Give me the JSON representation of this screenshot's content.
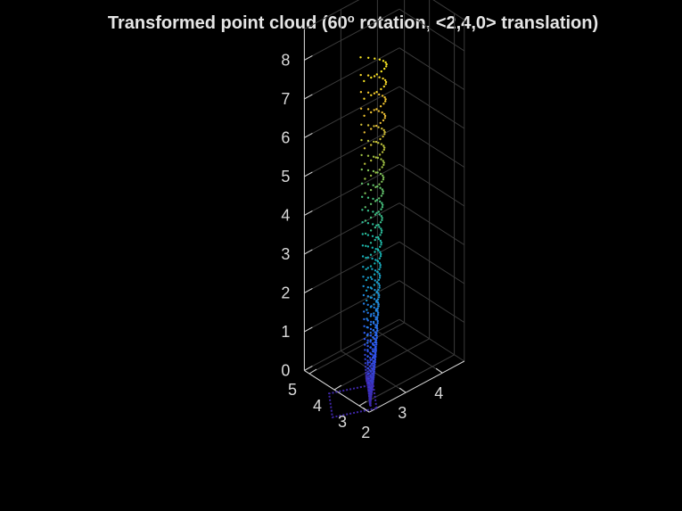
{
  "chart_data": {
    "type": "scatter3d",
    "title": "Transformed point cloud (60° rotation, <2,4,0> translation)",
    "title_superscript": "o",
    "xlabel": "",
    "ylabel": "",
    "zlabel": "",
    "x_ticks": [
      "2",
      "3",
      "4"
    ],
    "y_ticks": [
      "3",
      "4",
      "5"
    ],
    "z_ticks": [
      "0",
      "1",
      "2",
      "3",
      "4",
      "5",
      "6",
      "7",
      "8"
    ],
    "xlim": [
      2,
      4.6
    ],
    "ylim": [
      2.6,
      5.2
    ],
    "zlim": [
      0,
      8.8
    ],
    "grid": true,
    "background": "#000000",
    "colormap": "parula",
    "colormap_stops": [
      "#3e26a8",
      "#2e59f5",
      "#1e8fd8",
      "#14b4b0",
      "#47c27e",
      "#a7bf3c",
      "#efb932",
      "#f9e722"
    ],
    "generator": {
      "rotation_deg": 60,
      "translation": [
        2,
        4,
        0
      ],
      "u_range": [
        0,
        1
      ],
      "u_steps": 12,
      "layers": 40,
      "z_max": 8.4,
      "curve_exponent": 2.2
    }
  }
}
